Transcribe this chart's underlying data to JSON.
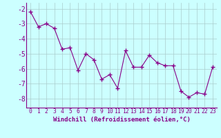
{
  "x": [
    0,
    1,
    2,
    3,
    4,
    5,
    6,
    7,
    8,
    9,
    10,
    11,
    12,
    13,
    14,
    15,
    16,
    17,
    18,
    19,
    20,
    21,
    22,
    23
  ],
  "y": [
    -2.2,
    -3.2,
    -3.0,
    -3.3,
    -4.7,
    -4.6,
    -6.1,
    -5.0,
    -5.4,
    -6.7,
    -6.4,
    -7.3,
    -4.8,
    -5.9,
    -5.9,
    -5.1,
    -5.6,
    -5.8,
    -5.8,
    -7.5,
    -7.9,
    -7.6,
    -7.7,
    -5.9
  ],
  "xlim": [
    -0.5,
    23.5
  ],
  "ylim": [
    -8.6,
    -1.6
  ],
  "yticks": [
    -8,
    -7,
    -6,
    -5,
    -4,
    -3,
    -2
  ],
  "xticks": [
    0,
    1,
    2,
    3,
    4,
    5,
    6,
    7,
    8,
    9,
    10,
    11,
    12,
    13,
    14,
    15,
    16,
    17,
    18,
    19,
    20,
    21,
    22,
    23
  ],
  "xlabel": "Windchill (Refroidissement éolien,°C)",
  "line_color": "#880088",
  "marker": "+",
  "bg_color": "#ccffff",
  "grid_color": "#aacccc",
  "tick_label_color": "#880088",
  "xlabel_color": "#880088",
  "xlabel_fontsize": 6.5,
  "ytick_fontsize": 7.0,
  "xtick_fontsize": 5.8,
  "spine_color": "#880088"
}
